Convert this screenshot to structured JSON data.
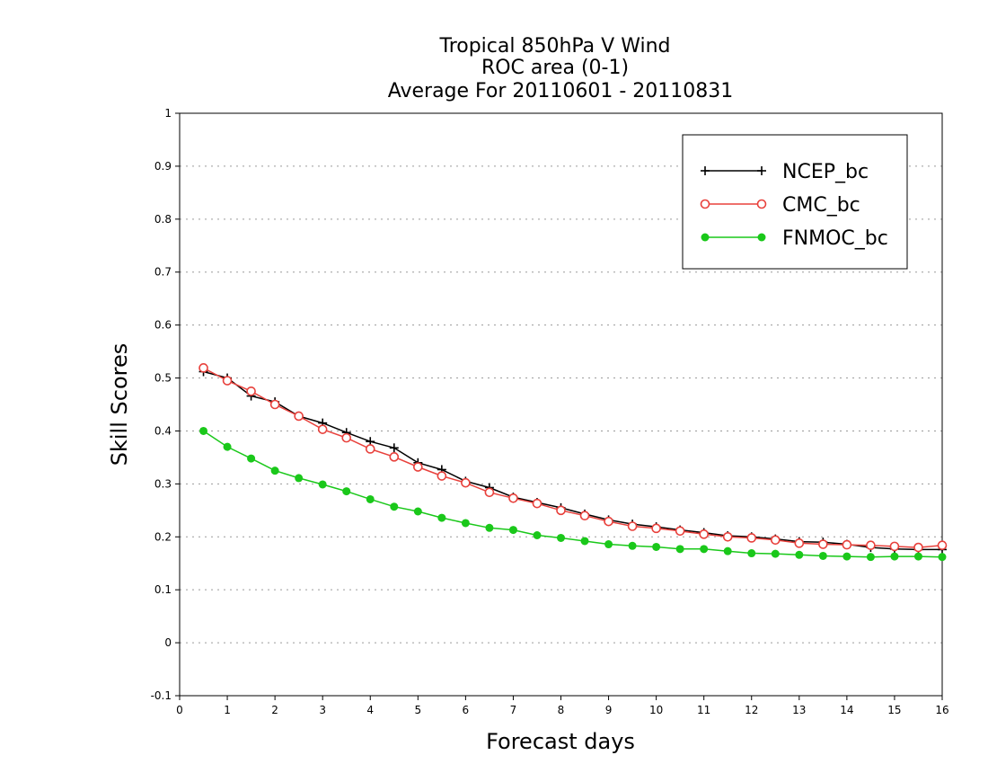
{
  "chart_data": {
    "type": "line",
    "title_lines": [
      "Tropical 850hPa V Wind",
      "ROC area (0-1)",
      "Average For 20110601 - 20110831"
    ],
    "xlabel": "Forecast days",
    "ylabel": "Skill Scores",
    "xlim": [
      0,
      16
    ],
    "ylim": [
      -0.1,
      1
    ],
    "xticks": [
      "0",
      "1",
      "2",
      "3",
      "4",
      "5",
      "6",
      "7",
      "8",
      "9",
      "10",
      "11",
      "12",
      "13",
      "14",
      "15",
      "16"
    ],
    "yticks": [
      "-0.1",
      "0",
      "0.1",
      "0.2",
      "0.3",
      "0.4",
      "0.5",
      "0.6",
      "0.7",
      "0.8",
      "0.9",
      "1"
    ],
    "grid": true,
    "legend_position": "top-right",
    "x": [
      0.5,
      1,
      1.5,
      2,
      2.5,
      3,
      3.5,
      4,
      4.5,
      5,
      5.5,
      6,
      6.5,
      7,
      7.5,
      8,
      8.5,
      9,
      9.5,
      10,
      10.5,
      11,
      11.5,
      12,
      12.5,
      13,
      13.5,
      14,
      14.5,
      15,
      15.5,
      16
    ],
    "series": [
      {
        "name": "NCEP_bc",
        "color": "#000000",
        "marker": "plus",
        "values": [
          0.512,
          0.5,
          0.466,
          0.455,
          0.428,
          0.415,
          0.397,
          0.38,
          0.368,
          0.34,
          0.327,
          0.305,
          0.293,
          0.275,
          0.265,
          0.255,
          0.243,
          0.232,
          0.224,
          0.219,
          0.213,
          0.208,
          0.202,
          0.2,
          0.196,
          0.191,
          0.19,
          0.186,
          0.18,
          0.177,
          0.176,
          0.176
        ]
      },
      {
        "name": "CMC_bc",
        "color": "#e8413c",
        "marker": "open-circle",
        "values": [
          0.519,
          0.495,
          0.475,
          0.45,
          0.428,
          0.403,
          0.387,
          0.366,
          0.351,
          0.332,
          0.315,
          0.302,
          0.284,
          0.273,
          0.263,
          0.25,
          0.24,
          0.229,
          0.22,
          0.216,
          0.211,
          0.205,
          0.2,
          0.198,
          0.194,
          0.188,
          0.186,
          0.185,
          0.184,
          0.182,
          0.18,
          0.184
        ]
      },
      {
        "name": "FNMOC_bc",
        "color": "#1ac81a",
        "marker": "filled-circle",
        "values": [
          0.4,
          0.37,
          0.348,
          0.325,
          0.311,
          0.299,
          0.286,
          0.271,
          0.257,
          0.248,
          0.236,
          0.226,
          0.217,
          0.213,
          0.203,
          0.198,
          0.192,
          0.186,
          0.183,
          0.181,
          0.177,
          0.177,
          0.173,
          0.169,
          0.168,
          0.166,
          0.164,
          0.163,
          0.162,
          0.163,
          0.163,
          0.162
        ]
      }
    ]
  }
}
